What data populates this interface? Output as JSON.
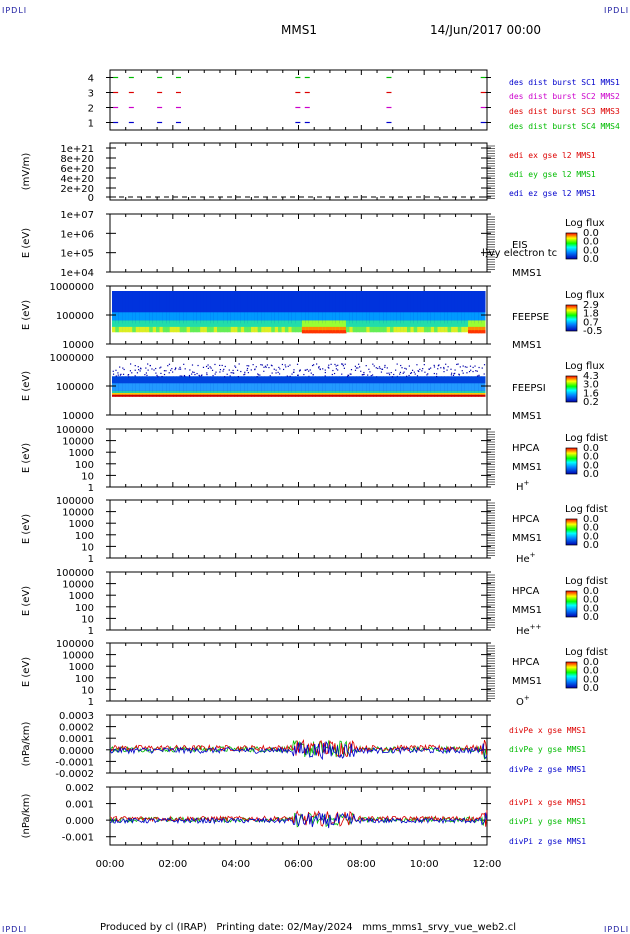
{
  "header": {
    "corner_left_top": "IPDLI",
    "corner_right_top": "IPDLI",
    "corner_left_bottom": "IPDLI",
    "corner_right_bottom": "IPDLI",
    "title": "MMS1",
    "datetime": "14/Jun/2017 00:00"
  },
  "footer": {
    "text": "Produced by cl (IRAP)   Printing date: 02/May/2024   mms_mms1_srvy_vue_web2.cl"
  },
  "chart_data": [
    {
      "type": "line",
      "id": "burst",
      "ylim": [
        0.5,
        4.5
      ],
      "yticks": [
        "1",
        "2",
        "3",
        "4"
      ],
      "series": [
        {
          "name": "des dist burst SC1 MMS1",
          "color": "#0000cc",
          "level": 1
        },
        {
          "name": "des dist burst SC2 MMS2",
          "color": "#cc00cc",
          "level": 2
        },
        {
          "name": "des dist burst SC3 MMS3",
          "color": "#dd0000",
          "level": 3
        },
        {
          "name": "des dist burst SC4 MMS4",
          "color": "#00bb00",
          "level": 4
        }
      ],
      "burst_times_h": [
        0.1,
        0.6,
        1.5,
        2.1,
        5.9,
        6.2,
        8.8,
        11.8
      ]
    },
    {
      "type": "line",
      "id": "edi",
      "ylabel": "(mV/m)",
      "yticks": [
        "1e+21",
        "8e+20",
        "6e+20",
        "4e+20",
        "2e+20",
        "0"
      ],
      "series": [
        {
          "name": "edi ex gse l2 MMS1",
          "color": "#dd0000"
        },
        {
          "name": "edi ey gse l2 MMS1",
          "color": "#00bb00"
        },
        {
          "name": "edi ez gse l2 MMS1",
          "color": "#0000cc"
        }
      ]
    },
    {
      "type": "heatmap",
      "id": "eis",
      "ylabel": "E (eV)",
      "yticks": [
        "1e+07",
        "1e+06",
        "1e+05",
        "1e+04"
      ],
      "labels": [
        "EIS",
        "MMS1"
      ],
      "overlay_text": "l)vy electron tc",
      "colorbar": {
        "title": "Log flux",
        "ticks": [
          "0.0",
          "0.0",
          "0.0",
          "0.0"
        ]
      }
    },
    {
      "type": "heatmap",
      "id": "feepse",
      "ylabel": "E (eV)",
      "yticks": [
        "1000000",
        "100000",
        "10000"
      ],
      "labels": [
        "FEEPSE",
        "MMS1"
      ],
      "colorbar": {
        "title": "Log flux",
        "ticks": [
          "2.9",
          "1.8",
          "0.7",
          "-0.5"
        ]
      }
    },
    {
      "type": "heatmap",
      "id": "feepsi",
      "ylabel": "E (eV)",
      "yticks": [
        "1000000",
        "100000",
        "10000"
      ],
      "labels": [
        "FEEPSI",
        "MMS1"
      ],
      "colorbar": {
        "title": "Log flux",
        "ticks": [
          "4.3",
          "3.0",
          "1.6",
          "0.2"
        ]
      }
    },
    {
      "type": "heatmap",
      "id": "hpca_h",
      "ylabel": "E (eV)",
      "yticks": [
        "100000",
        "10000",
        "1000",
        "100",
        "10",
        "1"
      ],
      "labels": [
        "HPCA",
        "MMS1"
      ],
      "species": {
        "base": "H",
        "sup": "+"
      },
      "colorbar": {
        "title": "Log fdist",
        "ticks": [
          "0.0",
          "0.0",
          "0.0",
          "0.0"
        ]
      }
    },
    {
      "type": "heatmap",
      "id": "hpca_he",
      "ylabel": "E (eV)",
      "yticks": [
        "100000",
        "10000",
        "1000",
        "100",
        "10",
        "1"
      ],
      "labels": [
        "HPCA",
        "MMS1"
      ],
      "species": {
        "base": "He",
        "sup": "+"
      },
      "colorbar": {
        "title": "Log fdist",
        "ticks": [
          "0.0",
          "0.0",
          "0.0",
          "0.0"
        ]
      }
    },
    {
      "type": "heatmap",
      "id": "hpca_hepp",
      "ylabel": "E (eV)",
      "yticks": [
        "100000",
        "10000",
        "1000",
        "100",
        "10",
        "1"
      ],
      "labels": [
        "HPCA",
        "MMS1"
      ],
      "species": {
        "base": "He",
        "sup": "++"
      },
      "colorbar": {
        "title": "Log fdist",
        "ticks": [
          "0.0",
          "0.0",
          "0.0",
          "0.0"
        ]
      }
    },
    {
      "type": "heatmap",
      "id": "hpca_o",
      "ylabel": "E (eV)",
      "yticks": [
        "100000",
        "10000",
        "1000",
        "100",
        "10",
        "1"
      ],
      "labels": [
        "HPCA",
        "MMS1"
      ],
      "species": {
        "base": "O",
        "sup": "+"
      },
      "colorbar": {
        "title": "Log fdist",
        "ticks": [
          "0.0",
          "0.0",
          "0.0",
          "0.0"
        ]
      }
    },
    {
      "type": "line",
      "id": "divpe",
      "ylabel": "(nPa/km)",
      "ylim": [
        -0.0002,
        0.0003
      ],
      "yticks": [
        "0.0003",
        "0.0002",
        "0.0001",
        "0.0000",
        "-0.0001",
        "-0.0002"
      ],
      "series": [
        {
          "name": "divPe x gse MMS1",
          "color": "#dd0000"
        },
        {
          "name": "divPe y gse MMS1",
          "color": "#00bb00"
        },
        {
          "name": "divPe z gse MMS1",
          "color": "#0000cc"
        }
      ]
    },
    {
      "type": "line",
      "id": "divpi",
      "ylabel": "(nPa/km)",
      "ylim": [
        -0.0015,
        0.002
      ],
      "yticks": [
        "0.002",
        "0.001",
        "0.000",
        "-0.001"
      ],
      "series": [
        {
          "name": "divPi x gse MMS1",
          "color": "#dd0000"
        },
        {
          "name": "divPi y gse MMS1",
          "color": "#00bb00"
        },
        {
          "name": "divPi z gse MMS1",
          "color": "#0000cc"
        }
      ]
    }
  ],
  "xaxis": {
    "range_h": [
      0,
      12
    ],
    "ticks": [
      "00:00",
      "02:00",
      "04:00",
      "06:00",
      "08:00",
      "10:00",
      "12:00"
    ]
  }
}
